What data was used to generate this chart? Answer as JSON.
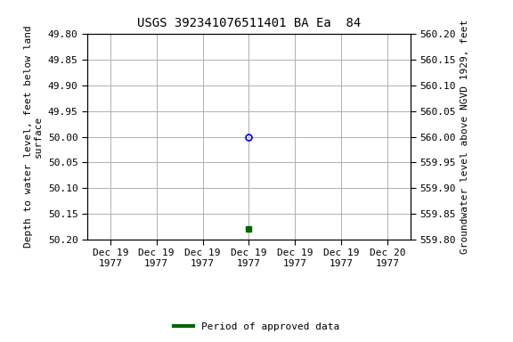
{
  "title": "USGS 392341076511401 BA Ea  84",
  "ylabel_left": "Depth to water level, feet below land\nsurface",
  "ylabel_right": "Groundwater level above NGVD 1929, feet",
  "ylim_left": [
    50.2,
    49.8
  ],
  "ylim_right": [
    559.8,
    560.2
  ],
  "yticks_left": [
    49.8,
    49.85,
    49.9,
    49.95,
    50.0,
    50.05,
    50.1,
    50.15,
    50.2
  ],
  "yticks_right": [
    560.2,
    560.15,
    560.1,
    560.05,
    560.0,
    559.95,
    559.9,
    559.85,
    559.8
  ],
  "data_point_open_x": 3,
  "data_point_open_y": 50.0,
  "data_point_open_color": "#0000cc",
  "data_point_filled_x": 3,
  "data_point_filled_y": 50.18,
  "data_point_filled_color": "#006600",
  "xlabel_dates": [
    "Dec 19\n1977",
    "Dec 19\n1977",
    "Dec 19\n1977",
    "Dec 19\n1977",
    "Dec 19\n1977",
    "Dec 19\n1977",
    "Dec 20\n1977"
  ],
  "legend_label": "Period of approved data",
  "legend_color": "#006600",
  "background_color": "#ffffff",
  "grid_color": "#b0b0b0",
  "font_color": "#000000",
  "title_fontsize": 10,
  "tick_fontsize": 8,
  "label_fontsize": 8,
  "xlim": [
    -0.5,
    6.5
  ],
  "x_tick_positions": [
    0,
    1,
    2,
    3,
    4,
    5,
    6
  ]
}
